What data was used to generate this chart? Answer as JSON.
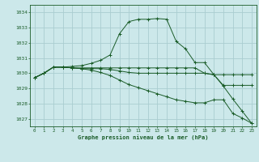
{
  "title": "Graphe pression niveau de la mer (hPa)",
  "bg_color": "#cce8ea",
  "grid_color": "#aacdd0",
  "line_color": "#1a5c28",
  "xlim": [
    -0.5,
    23.5
  ],
  "ylim": [
    1026.5,
    1034.5
  ],
  "yticks": [
    1027,
    1028,
    1029,
    1030,
    1031,
    1032,
    1033,
    1034
  ],
  "xticks": [
    0,
    1,
    2,
    3,
    4,
    5,
    6,
    7,
    8,
    9,
    10,
    11,
    12,
    13,
    14,
    15,
    16,
    17,
    18,
    19,
    20,
    21,
    22,
    23
  ],
  "series": [
    [
      1029.7,
      1030.0,
      1030.4,
      1030.4,
      1030.45,
      1030.5,
      1030.65,
      1030.85,
      1031.2,
      1032.6,
      1033.4,
      1033.55,
      1033.55,
      1033.6,
      1033.55,
      1032.1,
      1031.6,
      1030.7,
      1030.7,
      1029.9,
      1029.15,
      1028.3,
      1027.5,
      1026.7
    ],
    [
      1029.7,
      1030.0,
      1030.4,
      1030.4,
      1030.35,
      1030.35,
      1030.35,
      1030.35,
      1030.35,
      1030.35,
      1030.35,
      1030.35,
      1030.35,
      1030.35,
      1030.35,
      1030.35,
      1030.35,
      1030.35,
      1030.0,
      1029.9,
      1029.2,
      1029.2,
      1029.2,
      1029.2
    ],
    [
      1029.7,
      1030.0,
      1030.4,
      1030.4,
      1030.35,
      1030.3,
      1030.3,
      1030.3,
      1030.25,
      1030.15,
      1030.05,
      1030.0,
      1030.0,
      1030.0,
      1030.0,
      1030.0,
      1030.0,
      1030.0,
      1030.0,
      1029.9,
      1029.9,
      1029.9,
      1029.9,
      1029.9
    ],
    [
      1029.7,
      1030.0,
      1030.4,
      1030.4,
      1030.35,
      1030.3,
      1030.2,
      1030.05,
      1029.85,
      1029.55,
      1029.25,
      1029.05,
      1028.85,
      1028.65,
      1028.45,
      1028.25,
      1028.15,
      1028.05,
      1028.05,
      1028.25,
      1028.25,
      1027.35,
      1027.05,
      1026.7
    ]
  ]
}
